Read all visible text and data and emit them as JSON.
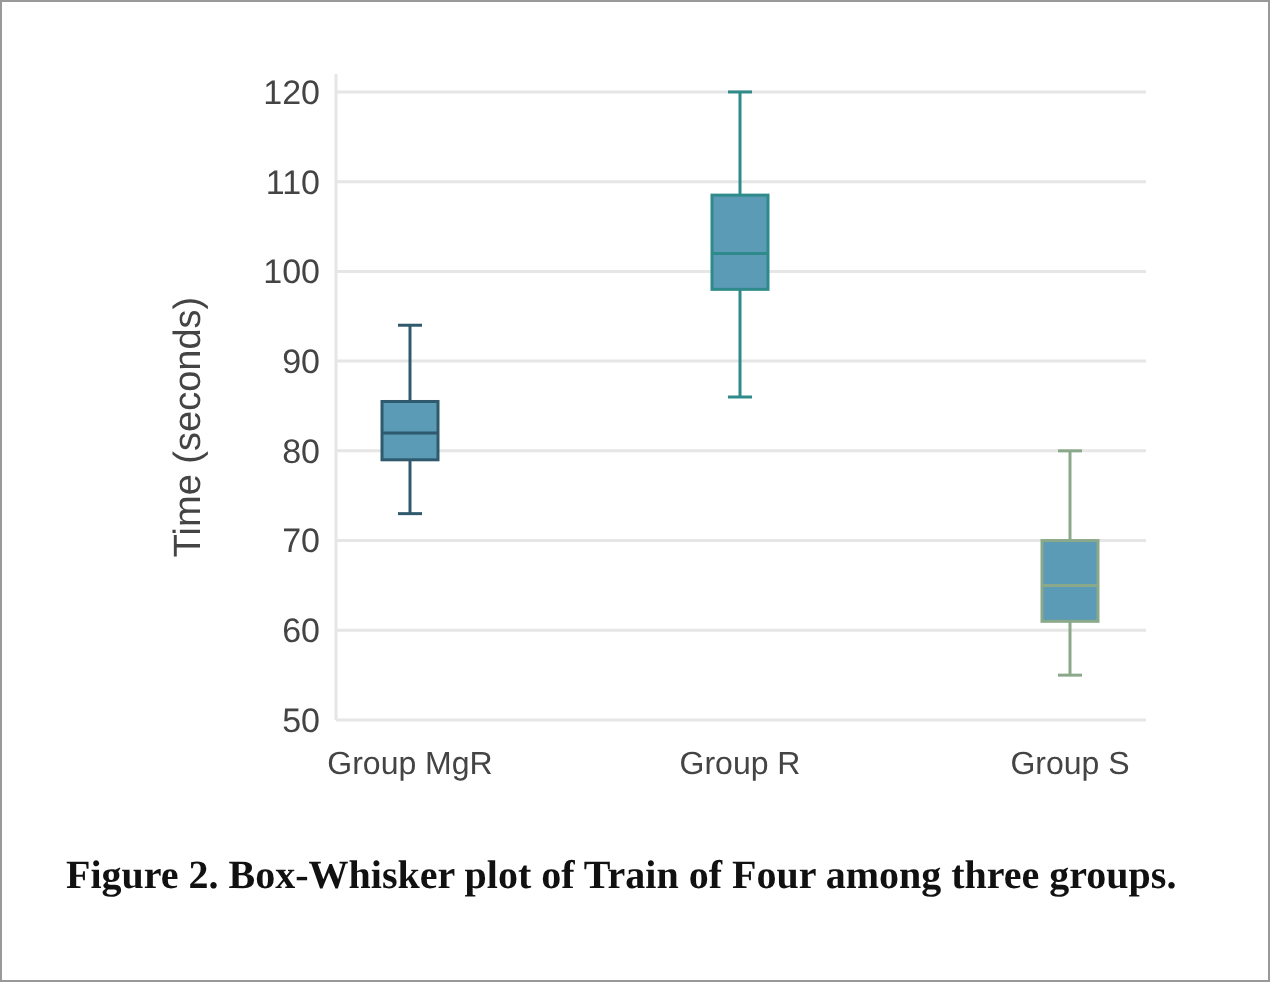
{
  "chart_data": {
    "type": "box",
    "ylabel": "Time (seconds)",
    "categories": [
      "Group MgR",
      "Group R",
      "Group S"
    ],
    "series": [
      {
        "color": "#5b9bb5",
        "boxes": [
          {
            "low": 73,
            "q1": 79,
            "median": 82,
            "q3": 85.5,
            "high": 94
          },
          {
            "low": 86,
            "q1": 98,
            "median": 102,
            "q3": 108.5,
            "high": 120
          },
          {
            "low": 55,
            "q1": 61,
            "median": 65,
            "q3": 70,
            "high": 80
          }
        ]
      }
    ],
    "ylim": [
      50,
      122
    ],
    "yticks": [
      50,
      60,
      70,
      80,
      90,
      100,
      110,
      120
    ],
    "grid": "y",
    "annotations": [
      "Figure 2. Box-Whisker plot of Train of Four among three groups."
    ]
  }
}
